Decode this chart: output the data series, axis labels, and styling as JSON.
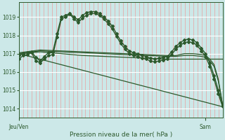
{
  "background_color": "#cce8e8",
  "grid_color_v": "#e8a0a0",
  "grid_color_h": "#ffffff",
  "line_color": "#2d5a2d",
  "ylim": [
    1013.5,
    1019.8
  ],
  "yticks": [
    1014,
    1015,
    1016,
    1017,
    1018,
    1019
  ],
  "xlabel": "Pression niveau de la mer( hPa )",
  "xtick_pos": [
    0,
    44
  ],
  "xtick_labels": [
    "Jeu/Ven",
    "Sam"
  ],
  "xlim": [
    0,
    48
  ],
  "n_vlines": 50,
  "series": [
    {
      "x": [
        0,
        48
      ],
      "y": [
        1017.0,
        1014.1
      ],
      "marker": false,
      "lw": 0.9,
      "ls": "-"
    },
    {
      "x": [
        0,
        5,
        10,
        15,
        20,
        25,
        30,
        35,
        38,
        40,
        42,
        44,
        46,
        48
      ],
      "y": [
        1017.0,
        1017.1,
        1017.0,
        1016.9,
        1016.85,
        1016.8,
        1016.75,
        1016.7,
        1016.7,
        1016.7,
        1016.7,
        1016.7,
        1016.7,
        1016.7
      ],
      "marker": false,
      "lw": 0.9,
      "ls": "-"
    },
    {
      "x": [
        0,
        5,
        10,
        15,
        20,
        25,
        30,
        35,
        37,
        39,
        41,
        43,
        44,
        45,
        46,
        47,
        48
      ],
      "y": [
        1017.0,
        1017.15,
        1017.1,
        1017.05,
        1017.0,
        1016.95,
        1016.9,
        1016.85,
        1016.85,
        1016.9,
        1016.9,
        1016.85,
        1016.8,
        1016.6,
        1016.3,
        1015.5,
        1014.2
      ],
      "marker": false,
      "lw": 0.9,
      "ls": "-"
    },
    {
      "x": [
        0,
        5,
        10,
        15,
        20,
        25,
        30,
        35,
        37,
        39,
        41,
        43,
        44,
        45,
        46,
        47,
        48
      ],
      "y": [
        1017.05,
        1017.2,
        1017.15,
        1017.1,
        1017.05,
        1017.0,
        1016.95,
        1016.9,
        1016.9,
        1017.0,
        1017.0,
        1016.95,
        1016.9,
        1016.7,
        1016.4,
        1015.6,
        1014.2
      ],
      "marker": false,
      "lw": 0.9,
      "ls": "-"
    },
    {
      "x": [
        0,
        1,
        2,
        3,
        4,
        5,
        6,
        7,
        8,
        9,
        10,
        11,
        12,
        13,
        14,
        15,
        16,
        17,
        18,
        19,
        20,
        21,
        22,
        23,
        24,
        25,
        26,
        27,
        28,
        29,
        30,
        31,
        32,
        33,
        34,
        35,
        36,
        37,
        38,
        39,
        40,
        41,
        42,
        43,
        44,
        45,
        46,
        47,
        48
      ],
      "y": [
        1016.9,
        1017.0,
        1017.05,
        1017.1,
        1016.8,
        1016.6,
        1016.85,
        1017.05,
        1017.1,
        1018.1,
        1019.0,
        1019.1,
        1019.2,
        1019.0,
        1018.85,
        1019.1,
        1019.25,
        1019.3,
        1019.3,
        1019.2,
        1019.0,
        1018.8,
        1018.5,
        1018.1,
        1017.7,
        1017.4,
        1017.15,
        1017.05,
        1017.0,
        1016.9,
        1016.85,
        1016.75,
        1016.7,
        1016.75,
        1016.8,
        1016.85,
        1017.1,
        1017.4,
        1017.6,
        1017.75,
        1017.8,
        1017.75,
        1017.6,
        1017.3,
        1017.0,
        1016.5,
        1015.8,
        1015.0,
        1014.2
      ],
      "marker": true,
      "lw": 1.0,
      "ls": "-"
    },
    {
      "x": [
        0,
        1,
        2,
        3,
        4,
        5,
        6,
        7,
        8,
        9,
        10,
        11,
        12,
        13,
        14,
        15,
        16,
        17,
        18,
        19,
        20,
        21,
        22,
        23,
        24,
        25,
        26,
        27,
        28,
        29,
        30,
        31,
        32,
        33,
        34,
        35,
        36,
        37,
        38,
        39,
        40,
        41,
        42,
        43,
        44,
        45,
        46,
        47,
        48
      ],
      "y": [
        1016.7,
        1016.9,
        1016.95,
        1017.05,
        1016.6,
        1016.5,
        1016.7,
        1016.9,
        1016.95,
        1017.9,
        1018.9,
        1019.0,
        1019.15,
        1018.9,
        1018.7,
        1018.95,
        1019.1,
        1019.2,
        1019.2,
        1019.1,
        1018.9,
        1018.65,
        1018.35,
        1017.95,
        1017.55,
        1017.25,
        1017.0,
        1016.9,
        1016.85,
        1016.75,
        1016.7,
        1016.6,
        1016.55,
        1016.6,
        1016.65,
        1016.7,
        1016.95,
        1017.25,
        1017.45,
        1017.6,
        1017.65,
        1017.6,
        1017.45,
        1017.15,
        1016.85,
        1016.3,
        1015.6,
        1014.8,
        1014.1
      ],
      "marker": true,
      "lw": 1.0,
      "ls": "-"
    }
  ]
}
